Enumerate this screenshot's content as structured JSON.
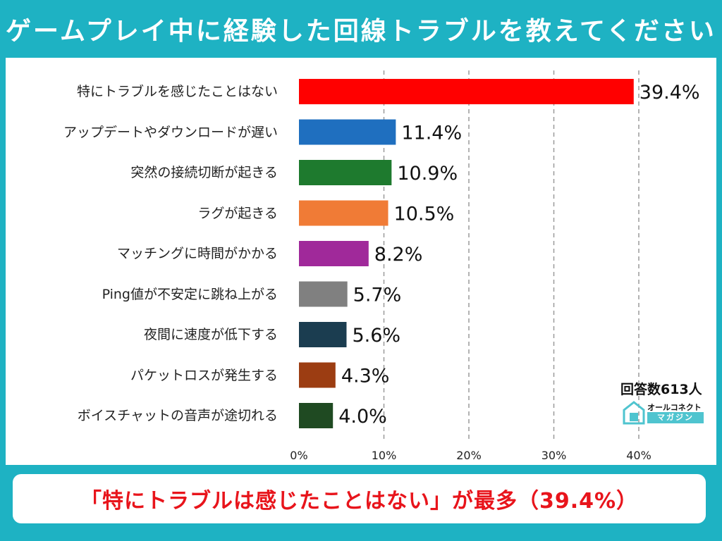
{
  "header": {
    "title": "ゲームプレイ中に経験した回線トラブルを教えてください"
  },
  "chart_data": {
    "type": "bar",
    "orientation": "horizontal",
    "categories": [
      "特にトラブルを感じたことはない",
      "アップデートやダウンロードが遅い",
      "突然の接続切断が起きる",
      "ラグが起きる",
      "マッチングに時間がかかる",
      "Ping値が不安定に跳ね上がる",
      "夜間に速度が低下する",
      "パケットロスが発生する",
      "ボイスチャットの音声が途切れる"
    ],
    "values": [
      39.4,
      11.4,
      10.9,
      10.5,
      8.2,
      5.7,
      5.6,
      4.3,
      4.0
    ],
    "value_labels": [
      "39.4%",
      "11.4%",
      "10.9%",
      "10.5%",
      "8.2%",
      "5.7%",
      "5.6%",
      "4.3%",
      "4.0%"
    ],
    "colors": [
      "#ff0000",
      "#1f6fbf",
      "#1e7a2e",
      "#f07b36",
      "#a0299a",
      "#808080",
      "#1b3d50",
      "#9c3d12",
      "#1f4a22"
    ],
    "xlim": [
      0,
      40
    ],
    "xticks": [
      "0%",
      "10%",
      "20%",
      "30%",
      "40%"
    ],
    "grid": true
  },
  "annotation": {
    "respondents": "回答数613人"
  },
  "logo": {
    "line1": "オールコネクト",
    "line2": "マガジン"
  },
  "footer": {
    "summary": "「特にトラブルは感じたことはない」が最多（39.4%）"
  }
}
